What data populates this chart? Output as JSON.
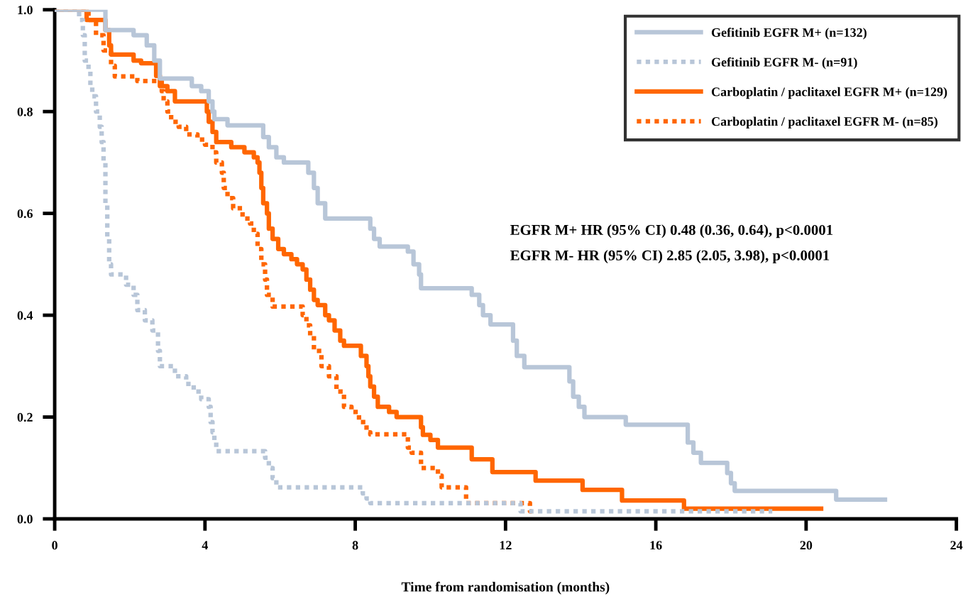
{
  "chart_data": {
    "type": "step",
    "xlabel": "Time from randomisation (months)",
    "xlim": [
      0,
      24
    ],
    "xticks": [
      0,
      4,
      8,
      12,
      16,
      20,
      24
    ],
    "ylim": [
      0,
      1
    ],
    "yticks": [
      {
        "value": 0,
        "label": "0.0"
      },
      {
        "value": 0.2,
        "label": "0.2"
      },
      {
        "value": 0.4,
        "label": "0.4"
      },
      {
        "value": 0.6,
        "label": "0.6"
      },
      {
        "value": 0.8,
        "label": "0.8"
      },
      {
        "value": 1,
        "label": "1.0"
      }
    ],
    "grid": false,
    "legend": "top right",
    "marker": "none",
    "annotations": [
      "EGFR M+ HR (95% CI) 0.48 (0.36, 0.64), p<0.0001",
      "EGFR M- HR (95% CI) 2.85 (2.05, 3.98), p<0.0001"
    ],
    "series": [
      {
        "name": "Gefitinib EGFR M+ (n=132)",
        "color": "#b8c6d8",
        "line_style": "solid",
        "x": [
          0,
          1.35,
          2.1,
          2.45,
          2.65,
          2.8,
          3.65,
          3.9,
          4.1,
          4.2,
          4.25,
          4.6,
          5.55,
          5.7,
          5.9,
          6.1,
          6.75,
          6.9,
          7.0,
          7.2,
          8.4,
          8.5,
          8.65,
          9.4,
          9.55,
          9.7,
          9.75,
          11.1,
          11.3,
          11.4,
          11.6,
          12.2,
          12.3,
          12.5,
          13.7,
          13.8,
          13.95,
          14.1,
          15.2,
          16.85,
          17.0,
          17.2,
          17.9,
          18.0,
          18.1,
          20.8,
          22.1
        ],
        "values": [
          1.0,
          0.96,
          0.95,
          0.93,
          0.9,
          0.865,
          0.85,
          0.84,
          0.82,
          0.8,
          0.785,
          0.773,
          0.75,
          0.73,
          0.71,
          0.7,
          0.68,
          0.65,
          0.62,
          0.59,
          0.57,
          0.55,
          0.535,
          0.525,
          0.5,
          0.48,
          0.453,
          0.44,
          0.42,
          0.4,
          0.382,
          0.35,
          0.32,
          0.298,
          0.27,
          0.24,
          0.22,
          0.2,
          0.185,
          0.15,
          0.13,
          0.11,
          0.09,
          0.07,
          0.055,
          0.038,
          0.038
        ]
      },
      {
        "name": "Gefitinib EGFR M- (n=91)",
        "color": "#b8c6d8",
        "line_style": "dotted",
        "x": [
          0,
          0.65,
          0.75,
          0.8,
          0.9,
          0.95,
          1.0,
          1.1,
          1.2,
          1.25,
          1.3,
          1.35,
          1.4,
          1.45,
          1.5,
          1.9,
          2.1,
          2.2,
          2.4,
          2.6,
          2.75,
          2.8,
          3.2,
          3.5,
          3.7,
          3.9,
          4.1,
          4.15,
          4.2,
          4.25,
          4.3,
          5.6,
          5.7,
          5.8,
          5.9,
          8.2,
          8.3,
          8.4,
          12.4,
          19.1
        ],
        "values": [
          1.0,
          0.98,
          0.95,
          0.9,
          0.88,
          0.85,
          0.83,
          0.8,
          0.77,
          0.74,
          0.7,
          0.62,
          0.55,
          0.5,
          0.48,
          0.46,
          0.44,
          0.41,
          0.39,
          0.37,
          0.33,
          0.3,
          0.28,
          0.265,
          0.25,
          0.235,
          0.22,
          0.19,
          0.17,
          0.15,
          0.133,
          0.12,
          0.1,
          0.08,
          0.062,
          0.05,
          0.04,
          0.031,
          0.015,
          0.015
        ]
      },
      {
        "name": "Carboplatin / paclitaxel EGFR M+ (n=129)",
        "color": "#ff6600",
        "line_style": "solid",
        "x": [
          0,
          0.85,
          1.35,
          1.45,
          1.5,
          2.1,
          2.3,
          2.7,
          2.8,
          3.0,
          3.2,
          4.05,
          4.1,
          4.2,
          4.3,
          4.7,
          5.05,
          5.3,
          5.4,
          5.45,
          5.5,
          5.55,
          5.65,
          5.7,
          5.8,
          5.95,
          6.1,
          6.3,
          6.45,
          6.6,
          6.7,
          6.8,
          6.9,
          7.0,
          7.2,
          7.3,
          7.45,
          7.6,
          7.7,
          8.15,
          8.3,
          8.35,
          8.4,
          8.5,
          8.6,
          8.9,
          9.1,
          9.75,
          9.8,
          10.0,
          10.2,
          11.1,
          11.65,
          12.8,
          14.05,
          15.1,
          16.75,
          20.4
        ],
        "values": [
          1.0,
          0.98,
          0.96,
          0.93,
          0.912,
          0.9,
          0.895,
          0.87,
          0.85,
          0.84,
          0.82,
          0.8,
          0.78,
          0.76,
          0.74,
          0.73,
          0.72,
          0.71,
          0.7,
          0.68,
          0.65,
          0.62,
          0.6,
          0.57,
          0.55,
          0.53,
          0.52,
          0.51,
          0.5,
          0.49,
          0.47,
          0.45,
          0.43,
          0.42,
          0.4,
          0.39,
          0.37,
          0.35,
          0.34,
          0.32,
          0.3,
          0.28,
          0.26,
          0.24,
          0.22,
          0.21,
          0.2,
          0.18,
          0.165,
          0.155,
          0.14,
          0.117,
          0.092,
          0.075,
          0.057,
          0.036,
          0.02,
          0.02
        ]
      },
      {
        "name": "Carboplatin / paclitaxel EGFR M- (n=85)",
        "color": "#ff6600",
        "line_style": "dotted",
        "x": [
          0,
          0.9,
          1.1,
          1.3,
          1.5,
          1.6,
          2.2,
          2.85,
          2.9,
          3.0,
          3.1,
          3.3,
          3.5,
          3.8,
          4.0,
          4.2,
          4.3,
          4.45,
          4.5,
          4.6,
          4.75,
          5.0,
          5.2,
          5.3,
          5.4,
          5.5,
          5.6,
          5.65,
          5.8,
          6.6,
          6.7,
          6.8,
          6.9,
          7.1,
          7.3,
          7.5,
          7.7,
          7.9,
          8.1,
          8.3,
          8.4,
          9.4,
          9.5,
          9.75,
          10.2,
          10.3,
          10.95,
          12.65,
          12.7
        ],
        "values": [
          1.0,
          0.98,
          0.95,
          0.92,
          0.89,
          0.869,
          0.86,
          0.84,
          0.82,
          0.8,
          0.78,
          0.77,
          0.755,
          0.745,
          0.735,
          0.72,
          0.7,
          0.68,
          0.65,
          0.63,
          0.61,
          0.59,
          0.58,
          0.56,
          0.53,
          0.5,
          0.47,
          0.44,
          0.417,
          0.4,
          0.38,
          0.36,
          0.33,
          0.3,
          0.28,
          0.25,
          0.22,
          0.21,
          0.19,
          0.17,
          0.166,
          0.14,
          0.13,
          0.1,
          0.085,
          0.062,
          0.031,
          0.015,
          0.015
        ]
      }
    ]
  }
}
